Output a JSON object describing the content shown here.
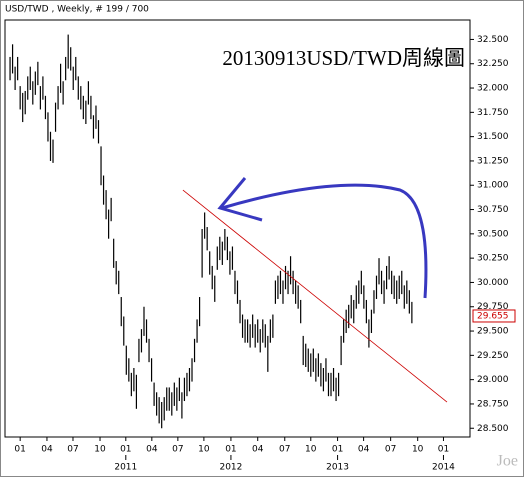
{
  "chart_data": {
    "type": "ohlc",
    "header": "USD/TWD , Weekly, # 199 / 700",
    "title": "20130913USD/TWD周線圖",
    "watermark": "Joe",
    "color": "#000000",
    "high": [
      32.32,
      32.45,
      32.22,
      32.32,
      32.02,
      31.95,
      31.97,
      32.12,
      32.22,
      32.07,
      32.17,
      32.27,
      32.02,
      32.12,
      31.92,
      31.75,
      31.55,
      31.47,
      31.85,
      32.02,
      32.25,
      32.07,
      32.32,
      32.55,
      32.42,
      32.22,
      32.32,
      32.12,
      32.02,
      31.92,
      31.87,
      32.07,
      31.92,
      31.72,
      31.82,
      31.67,
      31.4,
      31.1,
      30.95,
      30.75,
      30.87,
      30.45,
      30.22,
      30.12,
      29.85,
      29.65,
      29.35,
      29.22,
      29.07,
      29.12,
      29.05,
      29.42,
      29.52,
      29.75,
      29.62,
      29.42,
      29.22,
      28.97,
      28.87,
      28.82,
      28.77,
      28.82,
      28.92,
      28.92,
      28.87,
      28.97,
      28.92,
      29.02,
      28.87,
      29.02,
      29.07,
      29.12,
      29.22,
      29.42,
      29.62,
      29.85,
      30.55,
      30.72,
      30.57,
      30.32,
      30.17,
      30.07,
      30.37,
      30.47,
      30.42,
      30.55,
      30.47,
      30.32,
      30.37,
      30.12,
      30.02,
      29.82,
      29.67,
      29.62,
      29.62,
      29.57,
      29.67,
      29.57,
      29.62,
      29.52,
      29.62,
      29.57,
      29.45,
      29.62,
      29.67,
      30.02,
      30.07,
      30.12,
      30.02,
      30.17,
      30.12,
      30.27,
      30.12,
      30.02,
      29.97,
      29.82,
      29.45,
      29.37,
      29.32,
      29.27,
      29.32,
      29.22,
      29.27,
      29.17,
      29.12,
      29.22,
      29.07,
      29.07,
      29.12,
      29.02,
      29.07,
      29.45,
      29.62,
      29.72,
      29.77,
      29.87,
      29.82,
      29.97,
      30.02,
      30.12,
      29.97,
      29.82,
      29.62,
      29.72,
      29.92,
      30.07,
      30.25,
      30.12,
      30.02,
      30.17,
      30.27,
      30.12,
      30.07,
      30.02,
      30.07,
      30.12,
      29.97,
      30.02,
      29.92,
      29.8
    ],
    "low": [
      32.08,
      32.15,
      31.98,
      32.08,
      31.78,
      31.65,
      31.73,
      31.88,
      31.98,
      31.83,
      31.93,
      32.03,
      31.78,
      31.88,
      31.68,
      31.45,
      31.25,
      31.23,
      31.55,
      31.78,
      31.95,
      31.83,
      32.08,
      32.2,
      32.18,
      31.98,
      32.08,
      31.88,
      31.78,
      31.68,
      31.63,
      31.83,
      31.68,
      31.48,
      31.58,
      31.43,
      31.0,
      30.8,
      30.65,
      30.45,
      30.63,
      30.15,
      29.98,
      29.88,
      29.55,
      29.35,
      29.05,
      28.98,
      28.83,
      28.88,
      28.7,
      29.18,
      29.28,
      29.45,
      29.38,
      29.18,
      28.98,
      28.73,
      28.63,
      28.55,
      28.5,
      28.58,
      28.68,
      28.68,
      28.63,
      28.73,
      28.68,
      28.78,
      28.6,
      28.78,
      28.83,
      28.88,
      28.98,
      29.18,
      29.38,
      29.55,
      30.05,
      30.45,
      30.33,
      30.08,
      29.93,
      29.8,
      30.13,
      30.23,
      30.18,
      30.33,
      30.23,
      30.08,
      30.13,
      29.88,
      29.78,
      29.58,
      29.43,
      29.38,
      29.38,
      29.33,
      29.43,
      29.33,
      29.38,
      29.28,
      29.38,
      29.33,
      29.08,
      29.38,
      29.43,
      29.78,
      29.83,
      29.88,
      29.78,
      29.93,
      29.88,
      29.98,
      29.88,
      29.78,
      29.73,
      29.58,
      29.15,
      29.13,
      29.08,
      29.03,
      29.08,
      28.98,
      29.03,
      28.93,
      28.88,
      28.98,
      28.83,
      28.83,
      28.88,
      28.78,
      28.83,
      29.15,
      29.38,
      29.48,
      29.53,
      29.63,
      29.58,
      29.73,
      29.78,
      29.88,
      29.73,
      29.58,
      29.33,
      29.48,
      29.68,
      29.83,
      29.98,
      29.88,
      29.78,
      29.93,
      30.03,
      29.88,
      29.83,
      29.78,
      29.83,
      29.88,
      29.73,
      29.78,
      29.68,
      29.58
    ],
    "last_price": 29.655,
    "last_price_color": "#cc0000",
    "trendline": {
      "color": "#cc0000",
      "x": [
        68.4,
        172.9
      ],
      "y": [
        30.95,
        28.77
      ]
    },
    "xlim": [
      -2,
      182
    ],
    "xticks": [
      {
        "value": 4,
        "label": "01"
      },
      {
        "value": 14.6,
        "label": "04"
      },
      {
        "value": 24.9,
        "label": "07"
      },
      {
        "value": 35.6,
        "label": "10"
      },
      {
        "value": 45.8,
        "label": "01"
      },
      {
        "value": 56.1,
        "label": "04"
      },
      {
        "value": 66.4,
        "label": "07"
      },
      {
        "value": 76.7,
        "label": "10"
      },
      {
        "value": 87.4,
        "label": "01"
      },
      {
        "value": 98,
        "label": "04"
      },
      {
        "value": 108.7,
        "label": "07"
      },
      {
        "value": 119,
        "label": "10"
      },
      {
        "value": 129.6,
        "label": "01"
      },
      {
        "value": 139.9,
        "label": "04"
      },
      {
        "value": 150.6,
        "label": "07"
      },
      {
        "value": 161.3,
        "label": "10"
      },
      {
        "value": 171.5,
        "label": "01"
      }
    ],
    "year_labels": [
      {
        "value": 45.8,
        "label": "2011"
      },
      {
        "value": 87.4,
        "label": "2012"
      },
      {
        "value": 129.6,
        "label": "2013"
      },
      {
        "value": 171.5,
        "label": "2014"
      }
    ],
    "ylim": [
      28.41,
      32.7
    ],
    "yticks": [
      {
        "value": 28.5,
        "label": "28.500"
      },
      {
        "value": 28.75,
        "label": "28.750"
      },
      {
        "value": 29,
        "label": "29.000"
      },
      {
        "value": 29.25,
        "label": "29.250"
      },
      {
        "value": 29.5,
        "label": "29.500"
      },
      {
        "value": 29.75,
        "label": "29.750"
      },
      {
        "value": 30,
        "label": "30.000"
      },
      {
        "value": 30.25,
        "label": "30.250"
      },
      {
        "value": 30.5,
        "label": "30.500"
      },
      {
        "value": 30.75,
        "label": "30.750"
      },
      {
        "value": 31,
        "label": "31.000"
      },
      {
        "value": 31.25,
        "label": "31.250"
      },
      {
        "value": 31.5,
        "label": "31.500"
      },
      {
        "value": 31.75,
        "label": "31.750"
      },
      {
        "value": 32,
        "label": "32.000"
      },
      {
        "value": 32.25,
        "label": "32.250"
      },
      {
        "value": 32.5,
        "label": "32.500"
      }
    ]
  }
}
